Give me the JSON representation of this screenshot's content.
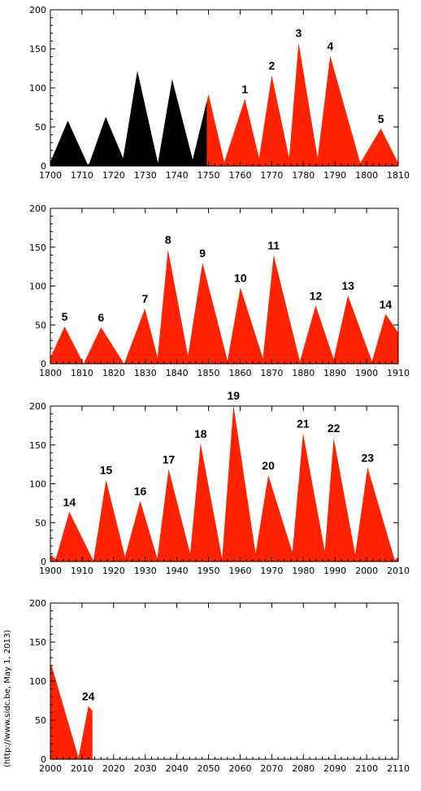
{
  "credit": "(http://www.sidc.be, May  1, 2013)",
  "colors": {
    "pre": "#000000",
    "post": "#ff2200",
    "axis": "#000000"
  },
  "chart_data": [
    {
      "type": "area",
      "xlim": [
        1700,
        1810
      ],
      "ylim": [
        0,
        200
      ],
      "xticks": [
        1700,
        1710,
        1720,
        1730,
        1740,
        1750,
        1760,
        1770,
        1780,
        1790,
        1800,
        1810
      ],
      "yticks": [
        0,
        50,
        100,
        150,
        200
      ],
      "split_year": 1749.5,
      "series": [
        {
          "x": [
            1700,
            1705.5,
            1712,
            1717.5,
            1723,
            1727.5,
            1734,
            1738.5,
            1745,
            1750,
            1755,
            1761.5,
            1766,
            1770,
            1775.5,
            1778.5,
            1784.5,
            1788.5,
            1798,
            1804.5,
            1810
          ],
          "y": [
            5,
            58,
            0,
            63,
            10,
            122,
            4,
            111,
            8,
            92,
            5,
            86,
            10,
            116,
            10,
            158,
            10,
            141,
            4,
            48,
            4
          ]
        }
      ],
      "labels": [
        {
          "text": "1",
          "x": 1761.5,
          "y": 86
        },
        {
          "text": "2",
          "x": 1770,
          "y": 116
        },
        {
          "text": "3",
          "x": 1778.5,
          "y": 158
        },
        {
          "text": "4",
          "x": 1788.5,
          "y": 141
        },
        {
          "text": "5",
          "x": 1804.5,
          "y": 48
        }
      ]
    },
    {
      "type": "area",
      "xlim": [
        1800,
        1910
      ],
      "ylim": [
        0,
        200
      ],
      "xticks": [
        1800,
        1810,
        1820,
        1830,
        1840,
        1850,
        1860,
        1870,
        1880,
        1890,
        1900,
        1910
      ],
      "yticks": [
        0,
        50,
        100,
        150,
        200
      ],
      "series": [
        {
          "x": [
            1800,
            1804.5,
            1810.5,
            1816,
            1823.3,
            1829.9,
            1833.9,
            1837.2,
            1843.5,
            1848.1,
            1856,
            1860.1,
            1867.2,
            1870.6,
            1878.9,
            1883.9,
            1889.6,
            1894.1,
            1901.7,
            1906,
            1910
          ],
          "y": [
            8,
            48,
            0,
            47,
            0,
            71,
            8,
            147,
            10,
            130,
            4,
            98,
            7,
            140,
            3,
            75,
            6,
            88,
            3,
            64,
            40
          ]
        }
      ],
      "labels": [
        {
          "text": "5",
          "x": 1804.5,
          "y": 48
        },
        {
          "text": "6",
          "x": 1816,
          "y": 47
        },
        {
          "text": "7",
          "x": 1829.9,
          "y": 71
        },
        {
          "text": "8",
          "x": 1837.2,
          "y": 147
        },
        {
          "text": "9",
          "x": 1848.1,
          "y": 130
        },
        {
          "text": "10",
          "x": 1860.1,
          "y": 98
        },
        {
          "text": "11",
          "x": 1870.6,
          "y": 140
        },
        {
          "text": "12",
          "x": 1883.9,
          "y": 75
        },
        {
          "text": "13",
          "x": 1894.1,
          "y": 88
        },
        {
          "text": "14",
          "x": 1906,
          "y": 64
        }
      ]
    },
    {
      "type": "area",
      "xlim": [
        1900,
        2010
      ],
      "ylim": [
        0,
        200
      ],
      "xticks": [
        1900,
        1910,
        1920,
        1930,
        1940,
        1950,
        1960,
        1970,
        1980,
        1990,
        2000,
        2010
      ],
      "yticks": [
        0,
        50,
        100,
        150,
        200
      ],
      "series": [
        {
          "x": [
            1900,
            1901.7,
            1906,
            1913.6,
            1917.6,
            1923.6,
            1928.4,
            1933.8,
            1937.4,
            1944.2,
            1947.5,
            1954.3,
            1957.9,
            1964.9,
            1968.9,
            1976.5,
            1979.9,
            1986.8,
            1989.6,
            1996.4,
            2000.3,
            2008.9,
            2010
          ],
          "y": [
            9,
            3,
            64,
            1,
            105,
            6,
            78,
            4,
            119,
            10,
            152,
            4,
            201,
            10,
            111,
            12,
            165,
            13,
            159,
            9,
            121,
            2,
            6
          ]
        }
      ],
      "labels": [
        {
          "text": "14",
          "x": 1906,
          "y": 64
        },
        {
          "text": "15",
          "x": 1917.6,
          "y": 105
        },
        {
          "text": "16",
          "x": 1928.4,
          "y": 78
        },
        {
          "text": "17",
          "x": 1937.4,
          "y": 119
        },
        {
          "text": "18",
          "x": 1947.5,
          "y": 152
        },
        {
          "text": "19",
          "x": 1957.9,
          "y": 201
        },
        {
          "text": "20",
          "x": 1968.9,
          "y": 111
        },
        {
          "text": "21",
          "x": 1979.9,
          "y": 165
        },
        {
          "text": "22",
          "x": 1989.6,
          "y": 159
        },
        {
          "text": "23",
          "x": 2000.3,
          "y": 121
        }
      ]
    },
    {
      "type": "area",
      "xlim": [
        2000,
        2110
      ],
      "ylim": [
        0,
        200
      ],
      "xticks": [
        2000,
        2010,
        2020,
        2030,
        2040,
        2050,
        2060,
        2070,
        2080,
        2090,
        2100,
        2110
      ],
      "yticks": [
        0,
        50,
        100,
        150,
        200
      ],
      "series": [
        {
          "x": [
            2000,
            2000.3,
            2008.9,
            2012,
            2013.3
          ],
          "y": [
            118,
            121,
            2,
            68,
            62
          ]
        }
      ],
      "labels": [
        {
          "text": "24",
          "x": 2012,
          "y": 68
        }
      ]
    }
  ]
}
